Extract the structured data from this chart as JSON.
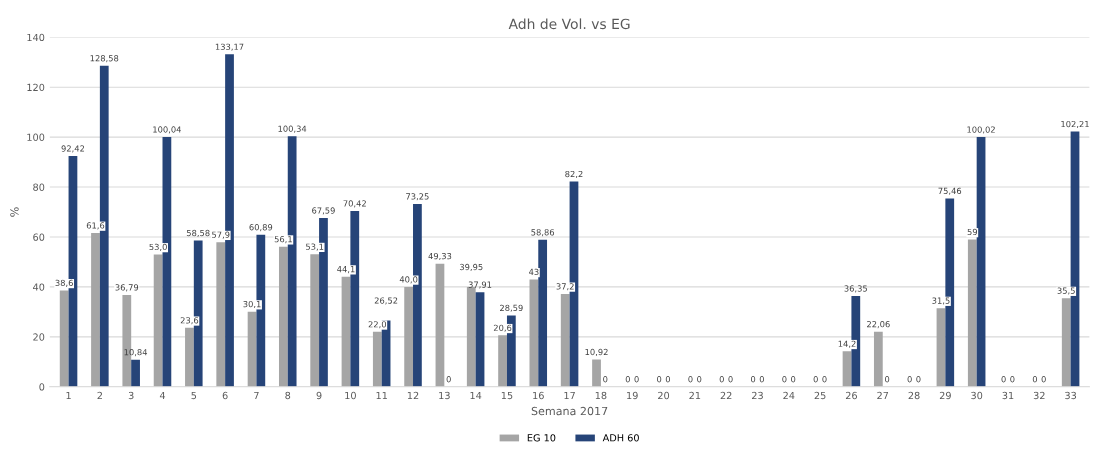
{
  "chart_data": {
    "type": "bar",
    "title": "Adh de Vol. vs EG",
    "xlabel": "Semana 2017",
    "ylabel": "%",
    "categories": [
      "1",
      "2",
      "3",
      "4",
      "5",
      "6",
      "7",
      "8",
      "9",
      "10",
      "11",
      "12",
      "13",
      "14",
      "15",
      "16",
      "17",
      "18",
      "19",
      "20",
      "21",
      "22",
      "23",
      "24",
      "25",
      "26",
      "27",
      "28",
      "29",
      "30",
      "31",
      "32",
      "33"
    ],
    "series": [
      {
        "name": "EG 10",
        "color": "#a5a5a5",
        "values": [
          38.6,
          61.6,
          36.79,
          53.0,
          23.6,
          57.9,
          30.1,
          56.1,
          53.1,
          44.1,
          22.0,
          40.0,
          49.33,
          39.95,
          20.6,
          43,
          37.2,
          10.92,
          0,
          0,
          0,
          0,
          0,
          0,
          0,
          14.2,
          22.06,
          0,
          31.5,
          59,
          0,
          0,
          35.5
        ],
        "value_labels": [
          "38,6",
          "61,6",
          "36,79",
          "53,0",
          "23,6",
          "57,9",
          "30,1",
          "56,1",
          "53,1",
          "44,1",
          "22,0",
          "40,0",
          "49,33",
          "39,95",
          "20,6",
          "43",
          "37,2",
          "10,92",
          "0",
          "0",
          "0",
          "0",
          "0",
          "0",
          "0",
          "14,2",
          "22,06",
          "0",
          "31,5",
          "59",
          "0",
          "0",
          "35,5"
        ]
      },
      {
        "name": "ADH 60",
        "color": "#264478",
        "values": [
          92.42,
          128.58,
          10.84,
          100.04,
          58.58,
          133.17,
          60.89,
          100.34,
          67.59,
          70.42,
          26.52,
          73.25,
          0,
          37.91,
          28.59,
          58.86,
          82.2,
          0,
          0,
          0,
          0,
          0,
          0,
          0,
          0,
          36.35,
          0,
          0,
          75.46,
          100.02,
          0,
          0,
          102.21
        ],
        "value_labels": [
          "92,42",
          "128,58",
          "10,84",
          "100,04",
          "58,58",
          "133,17",
          "60,89",
          "100,34",
          "67,59",
          "70,42",
          "26,52",
          "73,25",
          "0",
          "37,91",
          "28,59",
          "58,86",
          "82,2",
          "0",
          "0",
          "0",
          "0",
          "0",
          "0",
          "0",
          "0",
          "36,35",
          "0",
          "0",
          "75,46",
          "100,02",
          "0",
          "0",
          "102,21"
        ]
      }
    ],
    "ylim": [
      0,
      140
    ],
    "yticks": [
      0,
      20,
      40,
      60,
      80,
      100,
      120,
      140
    ],
    "grid": "y",
    "legend": "bottom"
  }
}
